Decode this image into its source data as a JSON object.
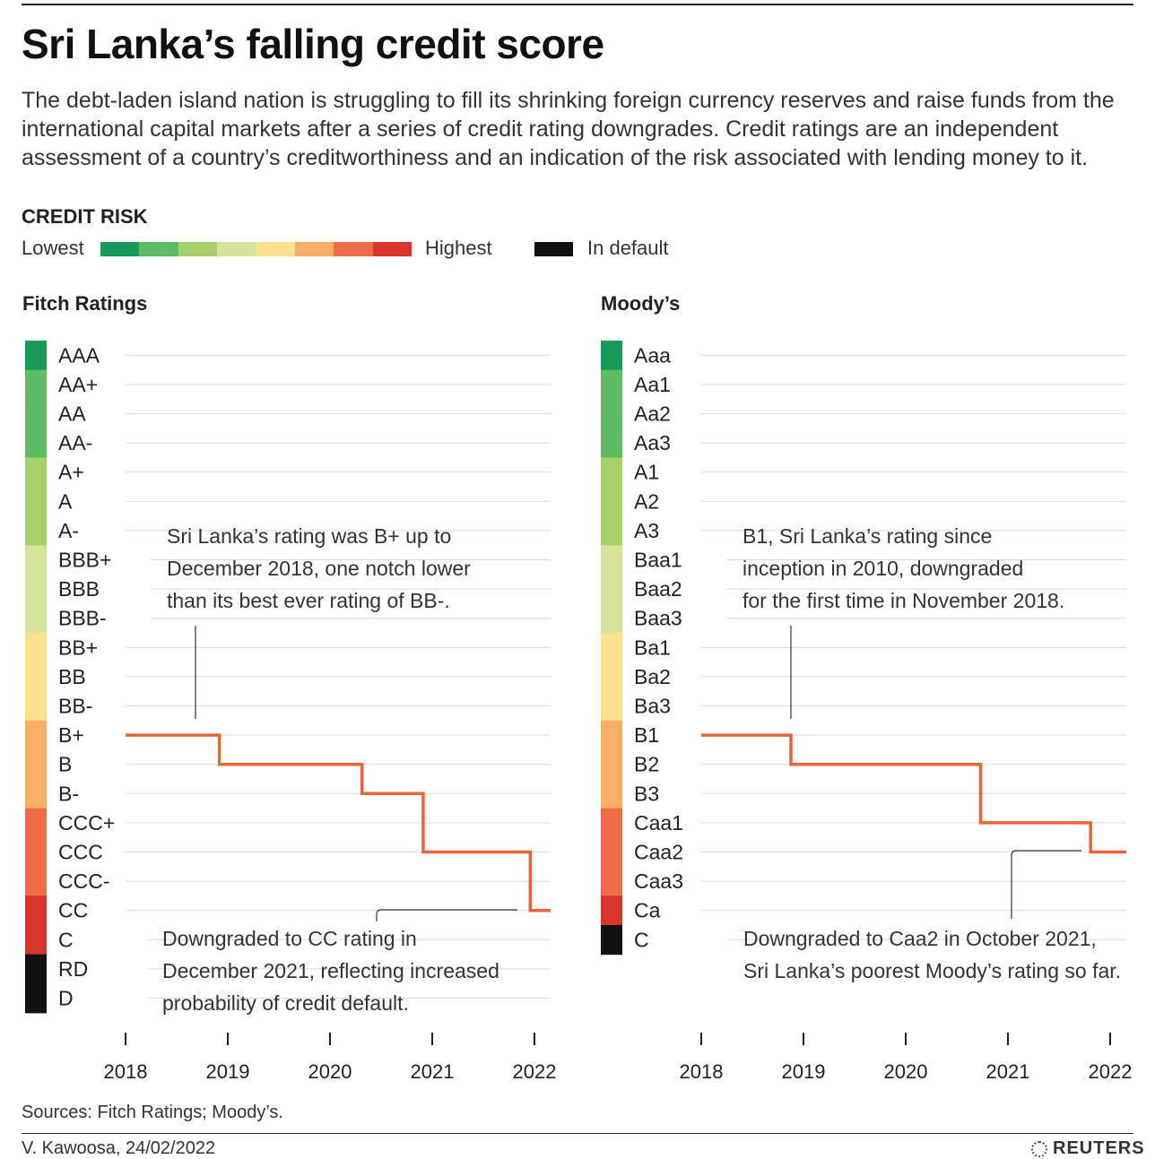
{
  "header": {
    "title": "Sri Lanka’s falling credit score",
    "subtitle": "The debt-laden island nation is struggling to fill its shrinking foreign currency reserves and raise funds from the international capital markets after a series of credit rating downgrades. Credit ratings are an independent assessment of a country’s creditworthiness and an indication of the risk associated with lending money to it."
  },
  "legend": {
    "title": "CREDIT RISK",
    "lowest": "Lowest",
    "highest": "Highest",
    "in_default": "In default",
    "colors": [
      "#1a9a5a",
      "#5dbb63",
      "#a5d06a",
      "#d4e59b",
      "#fbe08e",
      "#f8ad68",
      "#f06c46",
      "#d8352d"
    ],
    "default_color": "#111111"
  },
  "chart_data": [
    {
      "type": "line",
      "step": "post",
      "title": "Fitch Ratings",
      "x_ticks": [
        "2018",
        "2019",
        "2020",
        "2021",
        "2022"
      ],
      "categories": [
        "AAA",
        "AA+",
        "AA",
        "AA-",
        "A+",
        "A",
        "A-",
        "BBB+",
        "BBB",
        "BBB-",
        "BB+",
        "BB",
        "BB-",
        "B+",
        "B",
        "B-",
        "CCC+",
        "CCC",
        "CCC-",
        "CC",
        "C",
        "RD",
        "D"
      ],
      "category_colors": [
        "#1a9a5a",
        "#5dbb63",
        "#5dbb63",
        "#5dbb63",
        "#a5d06a",
        "#a5d06a",
        "#a5d06a",
        "#d4e59b",
        "#d4e59b",
        "#d4e59b",
        "#fbe08e",
        "#fbe08e",
        "#fbe08e",
        "#f8ad68",
        "#f8ad68",
        "#f8ad68",
        "#f06c46",
        "#f06c46",
        "#f06c46",
        "#d8352d",
        "#d8352d",
        "#111111",
        "#111111"
      ],
      "xlim": [
        2018.0,
        2022.17
      ],
      "series": [
        {
          "color": "#e8643a",
          "points": [
            {
              "x": 2018.0,
              "y": "B+"
            },
            {
              "x": 2018.92,
              "y": "B"
            },
            {
              "x": 2020.32,
              "y": "B-"
            },
            {
              "x": 2020.92,
              "y": "CCC"
            },
            {
              "x": 2021.97,
              "y": "CC"
            },
            {
              "x": 2022.17,
              "y": "CC"
            }
          ]
        }
      ],
      "annotations": [
        {
          "lines": [
            "Sri Lanka’s rating was B+ up to",
            "December 2018, one notch lower",
            "than its best ever rating of BB-."
          ],
          "x": 2018.68,
          "y": "B+",
          "position": "above"
        },
        {
          "lines": [
            "Downgraded to CC rating in",
            "December 2021, reflecting increased",
            "probability of credit default."
          ],
          "x": 2021.97,
          "y": "CC",
          "position": "below"
        }
      ]
    },
    {
      "type": "line",
      "step": "post",
      "title": "Moody’s",
      "x_ticks": [
        "2018",
        "2019",
        "2020",
        "2021",
        "2022"
      ],
      "categories": [
        "Aaa",
        "Aa1",
        "Aa2",
        "Aa3",
        "A1",
        "A2",
        "A3",
        "Baa1",
        "Baa2",
        "Baa3",
        "Ba1",
        "Ba2",
        "Ba3",
        "B1",
        "B2",
        "B3",
        "Caa1",
        "Caa2",
        "Caa3",
        "Ca",
        "C"
      ],
      "category_colors": [
        "#1a9a5a",
        "#5dbb63",
        "#5dbb63",
        "#5dbb63",
        "#a5d06a",
        "#a5d06a",
        "#a5d06a",
        "#d4e59b",
        "#d4e59b",
        "#d4e59b",
        "#fbe08e",
        "#fbe08e",
        "#fbe08e",
        "#f8ad68",
        "#f8ad68",
        "#f8ad68",
        "#f06c46",
        "#f06c46",
        "#f06c46",
        "#d8352d",
        "#111111"
      ],
      "xlim": [
        2018.0,
        2022.17
      ],
      "series": [
        {
          "color": "#e8643a",
          "points": [
            {
              "x": 2018.0,
              "y": "B1"
            },
            {
              "x": 2018.88,
              "y": "B2"
            },
            {
              "x": 2020.74,
              "y": "Caa1"
            },
            {
              "x": 2021.82,
              "y": "Caa2"
            },
            {
              "x": 2022.17,
              "y": "Caa2"
            }
          ]
        }
      ],
      "annotations": [
        {
          "lines": [
            "B1, Sri Lanka’s rating since",
            "inception in 2010, downgraded",
            "for the first time in November 2018."
          ],
          "x": 2018.88,
          "y": "B1",
          "position": "above"
        },
        {
          "lines": [
            "Downgraded to Caa2 in October 2021,",
            "Sri Lanka’s poorest Moody’s rating so far."
          ],
          "x": 2021.82,
          "y": "Caa2",
          "position": "below"
        }
      ]
    }
  ],
  "footer": {
    "sources": "Sources: Fitch Ratings; Moody’s.",
    "byline": "V. Kawoosa, 24/02/2022",
    "logo": "REUTERS"
  }
}
